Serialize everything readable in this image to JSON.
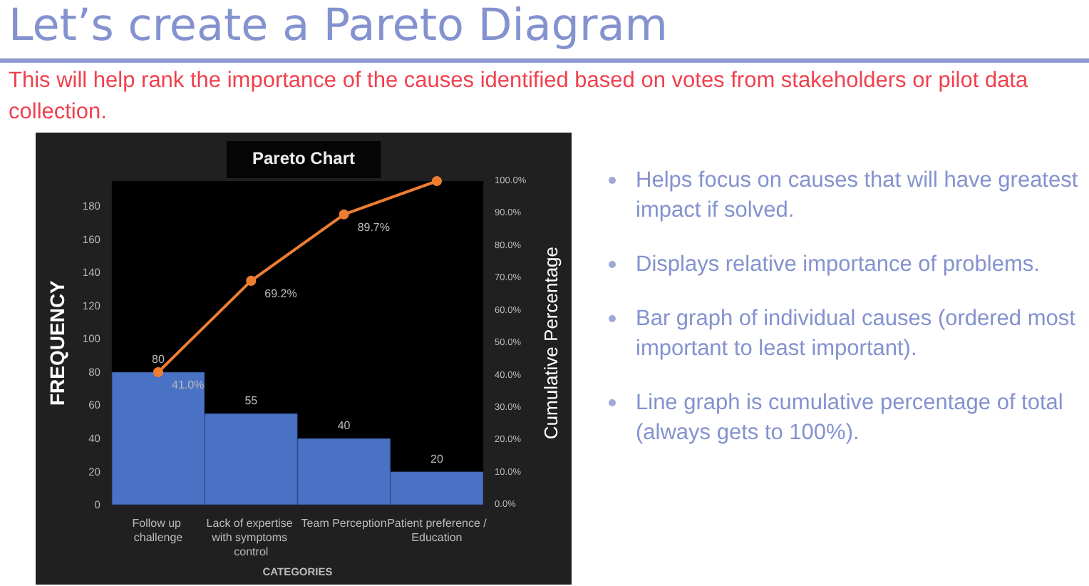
{
  "chart_data": {
    "type": "bar",
    "title": "Pareto Chart",
    "xlabel": "CATEGORIES",
    "ylabel": "FREQUENCY",
    "y2label": "Cumulative Percentage",
    "categories": [
      "Follow up challenge",
      "Lack of expertise with symptoms control",
      "Team Perception",
      "Patient preference /Education"
    ],
    "series": [
      {
        "color": "#4a72c4",
        "values": [
          80,
          55,
          40,
          20
        ],
        "value_labels": [
          "80",
          "55",
          "40",
          "20"
        ]
      },
      {
        "type": "line",
        "axis": "y2",
        "color": "#ed7d31",
        "values": [
          41.0,
          69.2,
          89.7,
          100
        ],
        "value_labels": [
          "41.0%",
          "69.2%",
          "89.7%",
          null
        ]
      }
    ],
    "ylim": [
      0,
      195
    ],
    "yticks": [
      0,
      20,
      40,
      60,
      80,
      100,
      120,
      140,
      160,
      180
    ],
    "y2lim": [
      0,
      100
    ],
    "y2ticks": [
      {
        "value": 0,
        "label": "0.0%"
      },
      {
        "value": 10,
        "label": "10.0%"
      },
      {
        "value": 20,
        "label": "20.0%"
      },
      {
        "value": 30,
        "label": "30.0%"
      },
      {
        "value": 40,
        "label": "40.0%"
      },
      {
        "value": 50,
        "label": "50.0%"
      },
      {
        "value": 60,
        "label": "60.0%"
      },
      {
        "value": 70,
        "label": "70.0%"
      },
      {
        "value": 80,
        "label": "80.0%"
      },
      {
        "value": 90,
        "label": "90.0%"
      },
      {
        "value": 100,
        "label": "100.0%"
      }
    ],
    "marker": "circle",
    "grid": false,
    "annotations": [
      "Let’s create a Pareto Diagram",
      "This will help rank the importance of the causes identified based on votes from stakeholders or pilot data collection.",
      "Helps focus on causes that will have greatest impact if solved.",
      "Displays relative importance of problems.",
      "Bar graph of individual causes (ordered most important to least important).",
      "Line graph is cumulative percentage of total (always gets to 100%)."
    ]
  }
}
